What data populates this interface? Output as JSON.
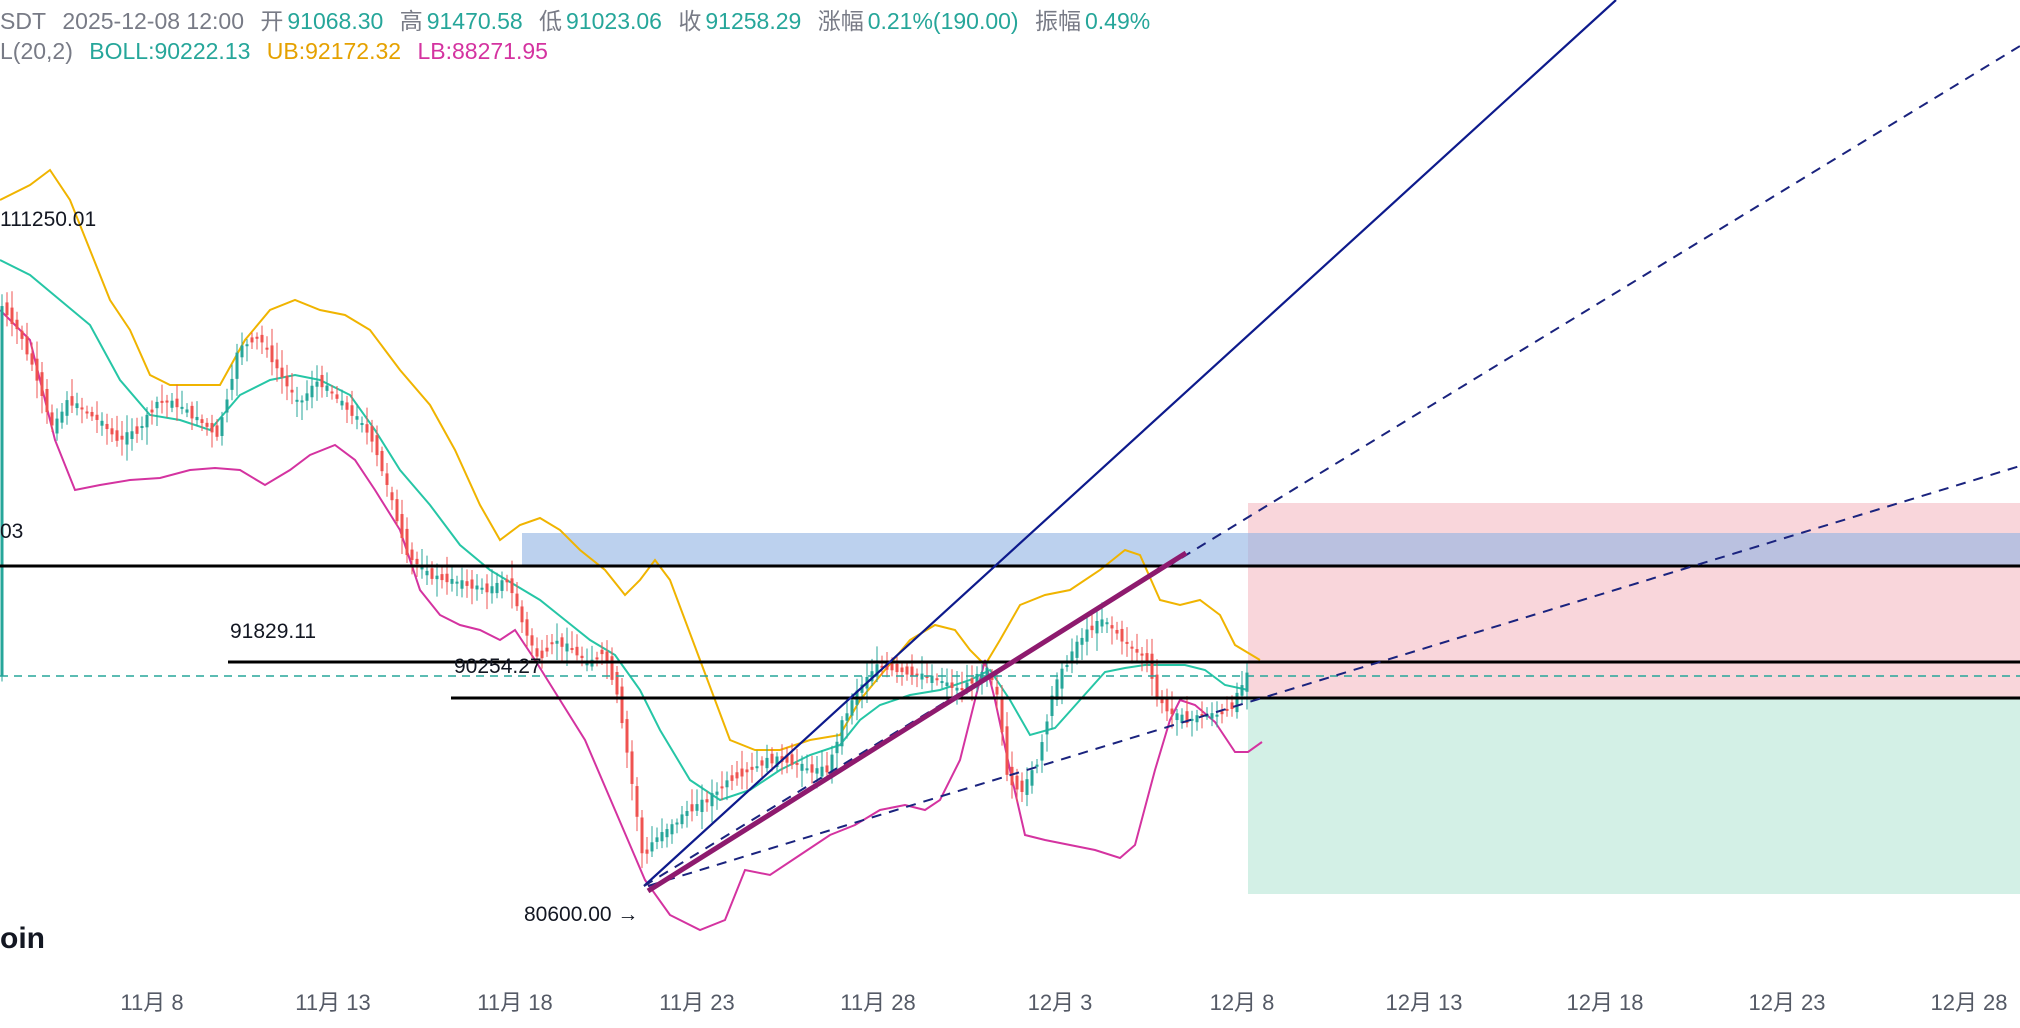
{
  "header": {
    "symbol_fragment": "SDT",
    "datetime": "2025-12-08 12:00",
    "open_label": "开",
    "open": "91068.30",
    "high_label": "高",
    "high": "91470.58",
    "low_label": "低",
    "low": "91023.06",
    "close_label": "收",
    "close": "91258.29",
    "change_label": "涨幅",
    "change": "0.21%(190.00)",
    "amplitude_label": "振幅",
    "amplitude": "0.49%"
  },
  "indicator": {
    "name_fragment": "L(20,2)",
    "boll": "BOLL:90222.13",
    "ub": "UB:92172.32",
    "lb": "LB:88271.95"
  },
  "watermark": "oin",
  "annotations": {
    "high_label": "111250.01",
    "partial_label": "03",
    "level_1": "91829.11",
    "level_2": "90254.27",
    "low_label": "80600.00 →"
  },
  "colors": {
    "up": "#26a69a",
    "down": "#ef5350",
    "boll": "#26c6a6",
    "ub": "#f0b400",
    "lb": "#d433a0",
    "trend_solid": "#0d1a8c",
    "channel": "#8e1a6e",
    "blue_zone": "#a9c4ea",
    "red_zone": "#f7c8cf",
    "green_zone": "#c8ece0"
  },
  "chart_data": {
    "type": "candlestick",
    "x_ticks": [
      "11月 8",
      "11月 13",
      "11月 18",
      "11月 23",
      "11月 28",
      "12月 3",
      "12月 8",
      "12月 13",
      "12月 18",
      "12月 23",
      "12月 28"
    ],
    "last_price": 91258.29,
    "horizontal_levels": [
      {
        "value": 94000,
        "style": "solid"
      },
      {
        "value": 91829.11,
        "style": "solid",
        "label": "91829.11"
      },
      {
        "value": 90254.27,
        "style": "solid",
        "label": "90254.27"
      },
      {
        "value": 91258.29,
        "style": "dashed"
      }
    ],
    "marked_points": [
      {
        "label": "111250.01",
        "value": 111250.01
      },
      {
        "label": "80600.00",
        "value": 80600.0
      }
    ],
    "series": [
      {
        "name": "BOLL",
        "last": 90222.13
      },
      {
        "name": "UB",
        "last": 92172.32
      },
      {
        "name": "LB",
        "last": 88271.95
      }
    ],
    "zones": [
      {
        "type": "supply",
        "color": "blue"
      },
      {
        "type": "position-stop",
        "color": "red"
      },
      {
        "type": "position-target",
        "color": "green"
      }
    ]
  }
}
